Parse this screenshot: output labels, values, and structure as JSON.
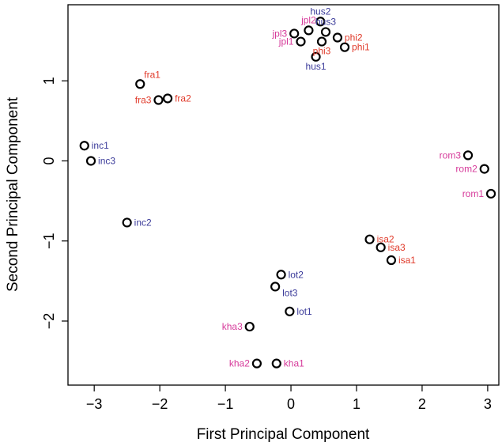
{
  "chart_data": {
    "type": "scatter",
    "title": "",
    "xlabel": "First Principal Component",
    "ylabel": "Second Principal Component",
    "xlim": [
      -3.4,
      3.17
    ],
    "ylim": [
      -2.8,
      1.95
    ],
    "xticks": [
      -3,
      -2,
      -1,
      0,
      1,
      2,
      3
    ],
    "yticks": [
      -2,
      -1,
      0,
      1
    ],
    "grid": false,
    "legend": "none",
    "colors": {
      "blue": "#3b3b9a",
      "red": "#e03a2a",
      "magenta": "#d63a9a",
      "point": "#000000"
    },
    "points": [
      {
        "label": "hus2",
        "x": 0.45,
        "y": 1.74,
        "color": "blue",
        "anchor": "top"
      },
      {
        "label": "hus3",
        "x": 0.53,
        "y": 1.61,
        "color": "blue",
        "anchor": "top"
      },
      {
        "label": "jpl2",
        "x": 0.27,
        "y": 1.63,
        "color": "magenta",
        "anchor": "top"
      },
      {
        "label": "jpl3",
        "x": 0.05,
        "y": 1.59,
        "color": "magenta",
        "anchor": "left"
      },
      {
        "label": "jpl1",
        "x": 0.15,
        "y": 1.49,
        "color": "magenta",
        "anchor": "left"
      },
      {
        "label": "phi2",
        "x": 0.71,
        "y": 1.54,
        "color": "red",
        "anchor": "right"
      },
      {
        "label": "phi1",
        "x": 0.82,
        "y": 1.42,
        "color": "red",
        "anchor": "right"
      },
      {
        "label": "phi3",
        "x": 0.47,
        "y": 1.49,
        "color": "red",
        "anchor": "bottom"
      },
      {
        "label": "hus1",
        "x": 0.38,
        "y": 1.3,
        "color": "blue",
        "anchor": "bottom"
      },
      {
        "label": "fra1",
        "x": -2.3,
        "y": 0.96,
        "color": "red",
        "anchor": "topright"
      },
      {
        "label": "fra2",
        "x": -1.88,
        "y": 0.78,
        "color": "red",
        "anchor": "right"
      },
      {
        "label": "fra3",
        "x": -2.02,
        "y": 0.76,
        "color": "red",
        "anchor": "left"
      },
      {
        "label": "inc1",
        "x": -3.15,
        "y": 0.19,
        "color": "blue",
        "anchor": "right"
      },
      {
        "label": "inc3",
        "x": -3.05,
        "y": 0.0,
        "color": "blue",
        "anchor": "right"
      },
      {
        "label": "inc2",
        "x": -2.5,
        "y": -0.77,
        "color": "blue",
        "anchor": "right"
      },
      {
        "label": "rom3",
        "x": 2.7,
        "y": 0.07,
        "color": "magenta",
        "anchor": "left"
      },
      {
        "label": "rom2",
        "x": 2.95,
        "y": -0.1,
        "color": "magenta",
        "anchor": "left"
      },
      {
        "label": "rom1",
        "x": 3.05,
        "y": -0.41,
        "color": "magenta",
        "anchor": "left"
      },
      {
        "label": "isa2",
        "x": 1.2,
        "y": -0.98,
        "color": "red",
        "anchor": "right"
      },
      {
        "label": "isa3",
        "x": 1.37,
        "y": -1.08,
        "color": "red",
        "anchor": "right"
      },
      {
        "label": "isa1",
        "x": 1.53,
        "y": -1.24,
        "color": "red",
        "anchor": "right"
      },
      {
        "label": "lot2",
        "x": -0.15,
        "y": -1.42,
        "color": "blue",
        "anchor": "right"
      },
      {
        "label": "lot3",
        "x": -0.24,
        "y": -1.57,
        "color": "blue",
        "anchor": "rightbelow"
      },
      {
        "label": "lot1",
        "x": -0.02,
        "y": -1.88,
        "color": "blue",
        "anchor": "right"
      },
      {
        "label": "kha3",
        "x": -0.63,
        "y": -2.07,
        "color": "magenta",
        "anchor": "left"
      },
      {
        "label": "kha2",
        "x": -0.52,
        "y": -2.53,
        "color": "magenta",
        "anchor": "left"
      },
      {
        "label": "kha1",
        "x": -0.22,
        "y": -2.53,
        "color": "magenta",
        "anchor": "right"
      }
    ]
  }
}
